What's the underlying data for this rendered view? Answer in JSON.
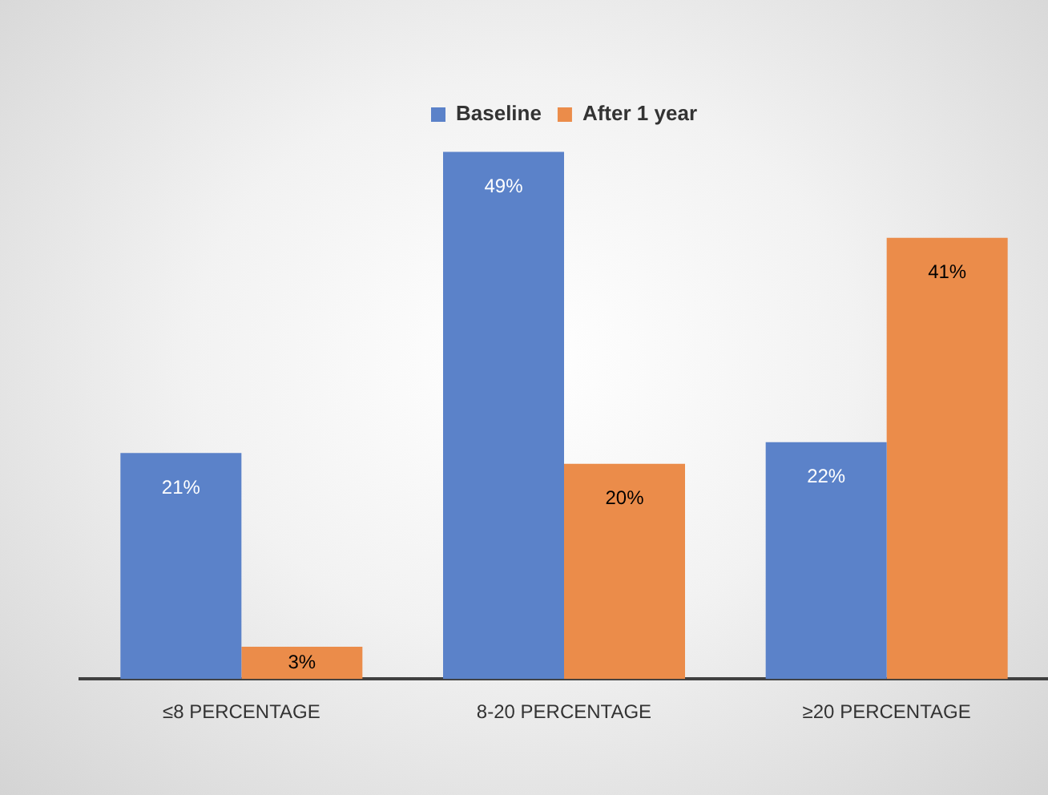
{
  "chart_data": {
    "type": "bar",
    "categories": [
      "≤8 PERCENTAGE",
      "8-20 PERCENTAGE",
      "≥20 PERCENTAGE"
    ],
    "series": [
      {
        "name": "Baseline",
        "color": "#5b82c9",
        "values": [
          21,
          49,
          22
        ],
        "value_labels": [
          "21%",
          "49%",
          "22%"
        ]
      },
      {
        "name": "After 1 year",
        "color": "#eb8c4a",
        "values": [
          3,
          20,
          41
        ],
        "value_labels": [
          "3%",
          "20%",
          "41%"
        ]
      }
    ],
    "legend": "top",
    "grid": false
  }
}
